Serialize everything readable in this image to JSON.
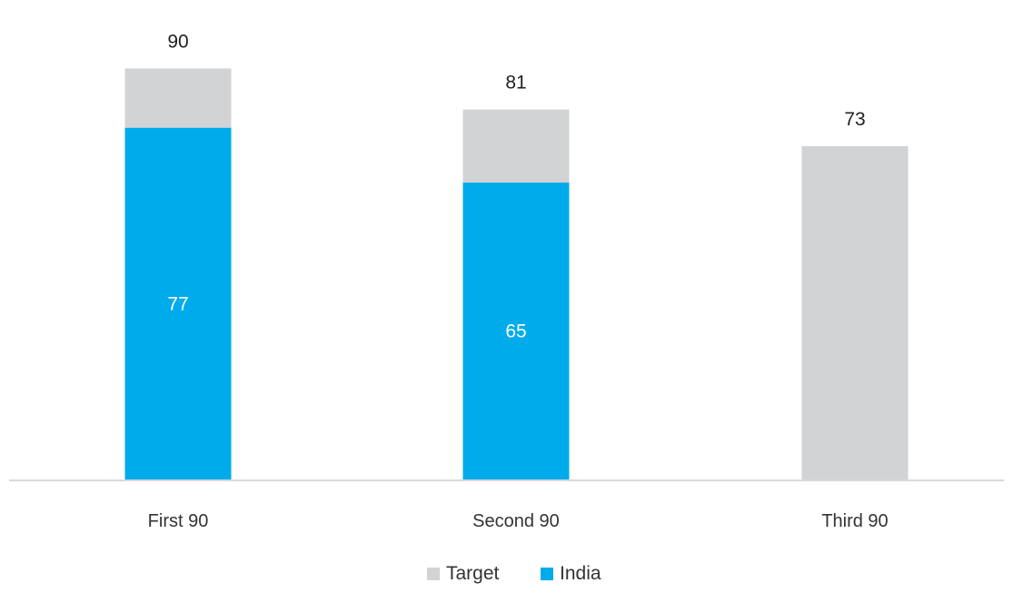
{
  "chart_data": {
    "type": "bar",
    "categories": [
      "First 90",
      "Second 90",
      "Third 90"
    ],
    "series": [
      {
        "name": "Target",
        "values": [
          90,
          81,
          73
        ],
        "color": "#d2d3d5",
        "label_color": "#222222"
      },
      {
        "name": "India",
        "values": [
          77,
          65,
          null
        ],
        "color": "#00abeb",
        "label_color": "#ffffff"
      }
    ],
    "overlap": true,
    "ylim": [
      0,
      105
    ],
    "grid": false,
    "axis_color": "#d9d9d9",
    "legend": {
      "position": "bottom",
      "items": [
        "Target",
        "India"
      ]
    }
  }
}
